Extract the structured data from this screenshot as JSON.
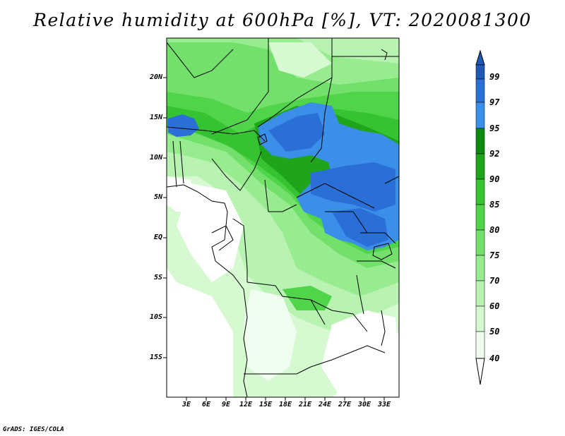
{
  "title": "Relative humidity at 600hPa [%], VT: 2020081300",
  "credit": "GrADS: IGES/COLA",
  "colors": {
    "c40": "#f0fef0",
    "c50": "#d7f9d2",
    "c60": "#b8f3b2",
    "c70": "#96ec8e",
    "c75": "#72e06a",
    "c80": "#50d44a",
    "c85": "#35c332",
    "c90": "#1fa51c",
    "c92": "#0e8a10",
    "c95": "#3b8fe8",
    "c97": "#2a6fd6",
    "c99": "#1f59b8",
    "border": "#000000"
  },
  "map": {
    "lat_labels": [
      "20N",
      "15N",
      "10N",
      "5N",
      "EQ",
      "5S",
      "10S",
      "15S"
    ],
    "lon_labels": [
      "3E",
      "6E",
      "9E",
      "12E",
      "15E",
      "18E",
      "21E",
      "24E",
      "27E",
      "30E",
      "33E"
    ]
  },
  "colorbar": {
    "levels": [
      "99",
      "97",
      "95",
      "92",
      "90",
      "85",
      "80",
      "75",
      "70",
      "60",
      "50",
      "40"
    ]
  }
}
